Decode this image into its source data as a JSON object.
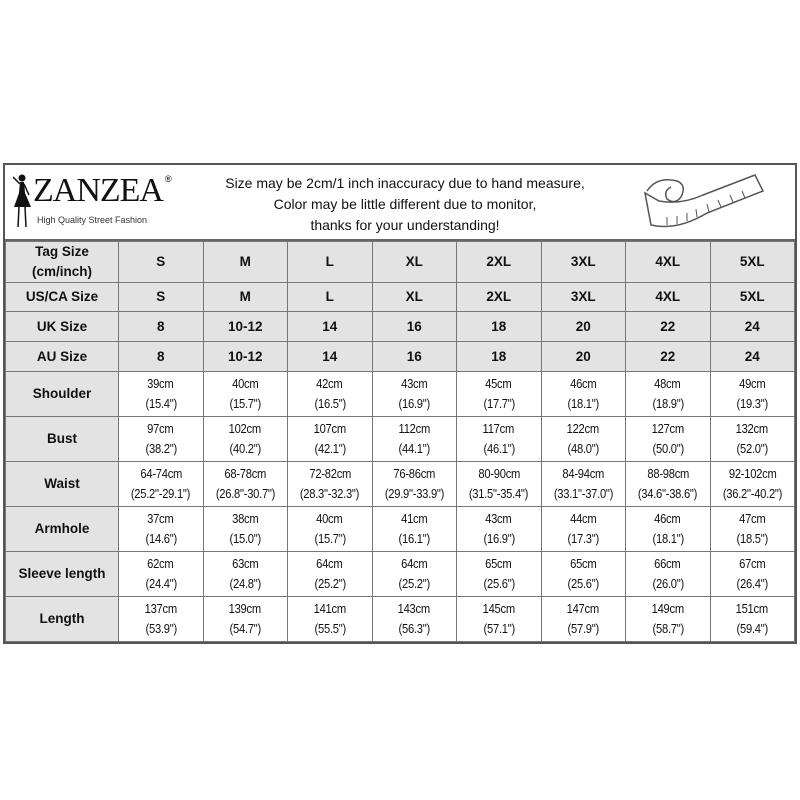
{
  "header": {
    "brand": "ZANZEA",
    "brand_reg": "®",
    "tagline": "High Quality Street Fashion",
    "notes": [
      "Size may be 2cm/1 inch inaccuracy due to hand measure,",
      "Color may be little different due to monitor,",
      "thanks for your understanding!"
    ],
    "icon": "tape-measure-icon"
  },
  "size_rows": [
    {
      "label": "Tag Size (cm/inch)",
      "values": [
        "S",
        "M",
        "L",
        "XL",
        "2XL",
        "3XL",
        "4XL",
        "5XL"
      ]
    },
    {
      "label": "US/CA Size",
      "values": [
        "S",
        "M",
        "L",
        "XL",
        "2XL",
        "3XL",
        "4XL",
        "5XL"
      ]
    },
    {
      "label": "UK Size",
      "values": [
        "8",
        "10-12",
        "14",
        "16",
        "18",
        "20",
        "22",
        "24"
      ]
    },
    {
      "label": "AU Size",
      "values": [
        "8",
        "10-12",
        "14",
        "16",
        "18",
        "20",
        "22",
        "24"
      ]
    }
  ],
  "measure_rows": [
    {
      "label": "Shoulder",
      "cm": [
        "39cm",
        "40cm",
        "42cm",
        "43cm",
        "45cm",
        "46cm",
        "48cm",
        "49cm"
      ],
      "inch": [
        "(15.4\")",
        "(15.7\")",
        "(16.5\")",
        "(16.9\")",
        "(17.7\")",
        "(18.1\")",
        "(18.9\")",
        "(19.3\")"
      ]
    },
    {
      "label": "Bust",
      "cm": [
        "97cm",
        "102cm",
        "107cm",
        "112cm",
        "117cm",
        "122cm",
        "127cm",
        "132cm"
      ],
      "inch": [
        "(38.2\")",
        "(40.2\")",
        "(42.1\")",
        "(44.1\")",
        "(46.1\")",
        "(48.0\")",
        "(50.0\")",
        "(52.0\")"
      ]
    },
    {
      "label": "Waist",
      "cm": [
        "64-74cm",
        "68-78cm",
        "72-82cm",
        "76-86cm",
        "80-90cm",
        "84-94cm",
        "88-98cm",
        "92-102cm"
      ],
      "inch": [
        "(25.2\"-29.1\")",
        "(26.8\"-30.7\")",
        "(28.3\"-32.3\")",
        "(29.9\"-33.9\")",
        "(31.5\"-35.4\")",
        "(33.1\"-37.0\")",
        "(34.6\"-38.6\")",
        "(36.2\"-40.2\")"
      ]
    },
    {
      "label": "Armhole",
      "cm": [
        "37cm",
        "38cm",
        "40cm",
        "41cm",
        "43cm",
        "44cm",
        "46cm",
        "47cm"
      ],
      "inch": [
        "(14.6\")",
        "(15.0\")",
        "(15.7\")",
        "(16.1\")",
        "(16.9\")",
        "(17.3\")",
        "(18.1\")",
        "(18.5\")"
      ]
    },
    {
      "label": "Sleeve length",
      "cm": [
        "62cm",
        "63cm",
        "64cm",
        "64cm",
        "65cm",
        "65cm",
        "66cm",
        "67cm"
      ],
      "inch": [
        "(24.4\")",
        "(24.8\")",
        "(25.2\")",
        "(25.2\")",
        "(25.6\")",
        "(25.6\")",
        "(26.0\")",
        "(26.4\")"
      ]
    },
    {
      "label": "Length",
      "cm": [
        "137cm",
        "139cm",
        "141cm",
        "143cm",
        "145cm",
        "147cm",
        "149cm",
        "151cm"
      ],
      "inch": [
        "(53.9\")",
        "(54.7\")",
        "(55.5\")",
        "(56.3\")",
        "(57.1\")",
        "(57.9\")",
        "(58.7\")",
        "(59.4\")"
      ]
    }
  ]
}
